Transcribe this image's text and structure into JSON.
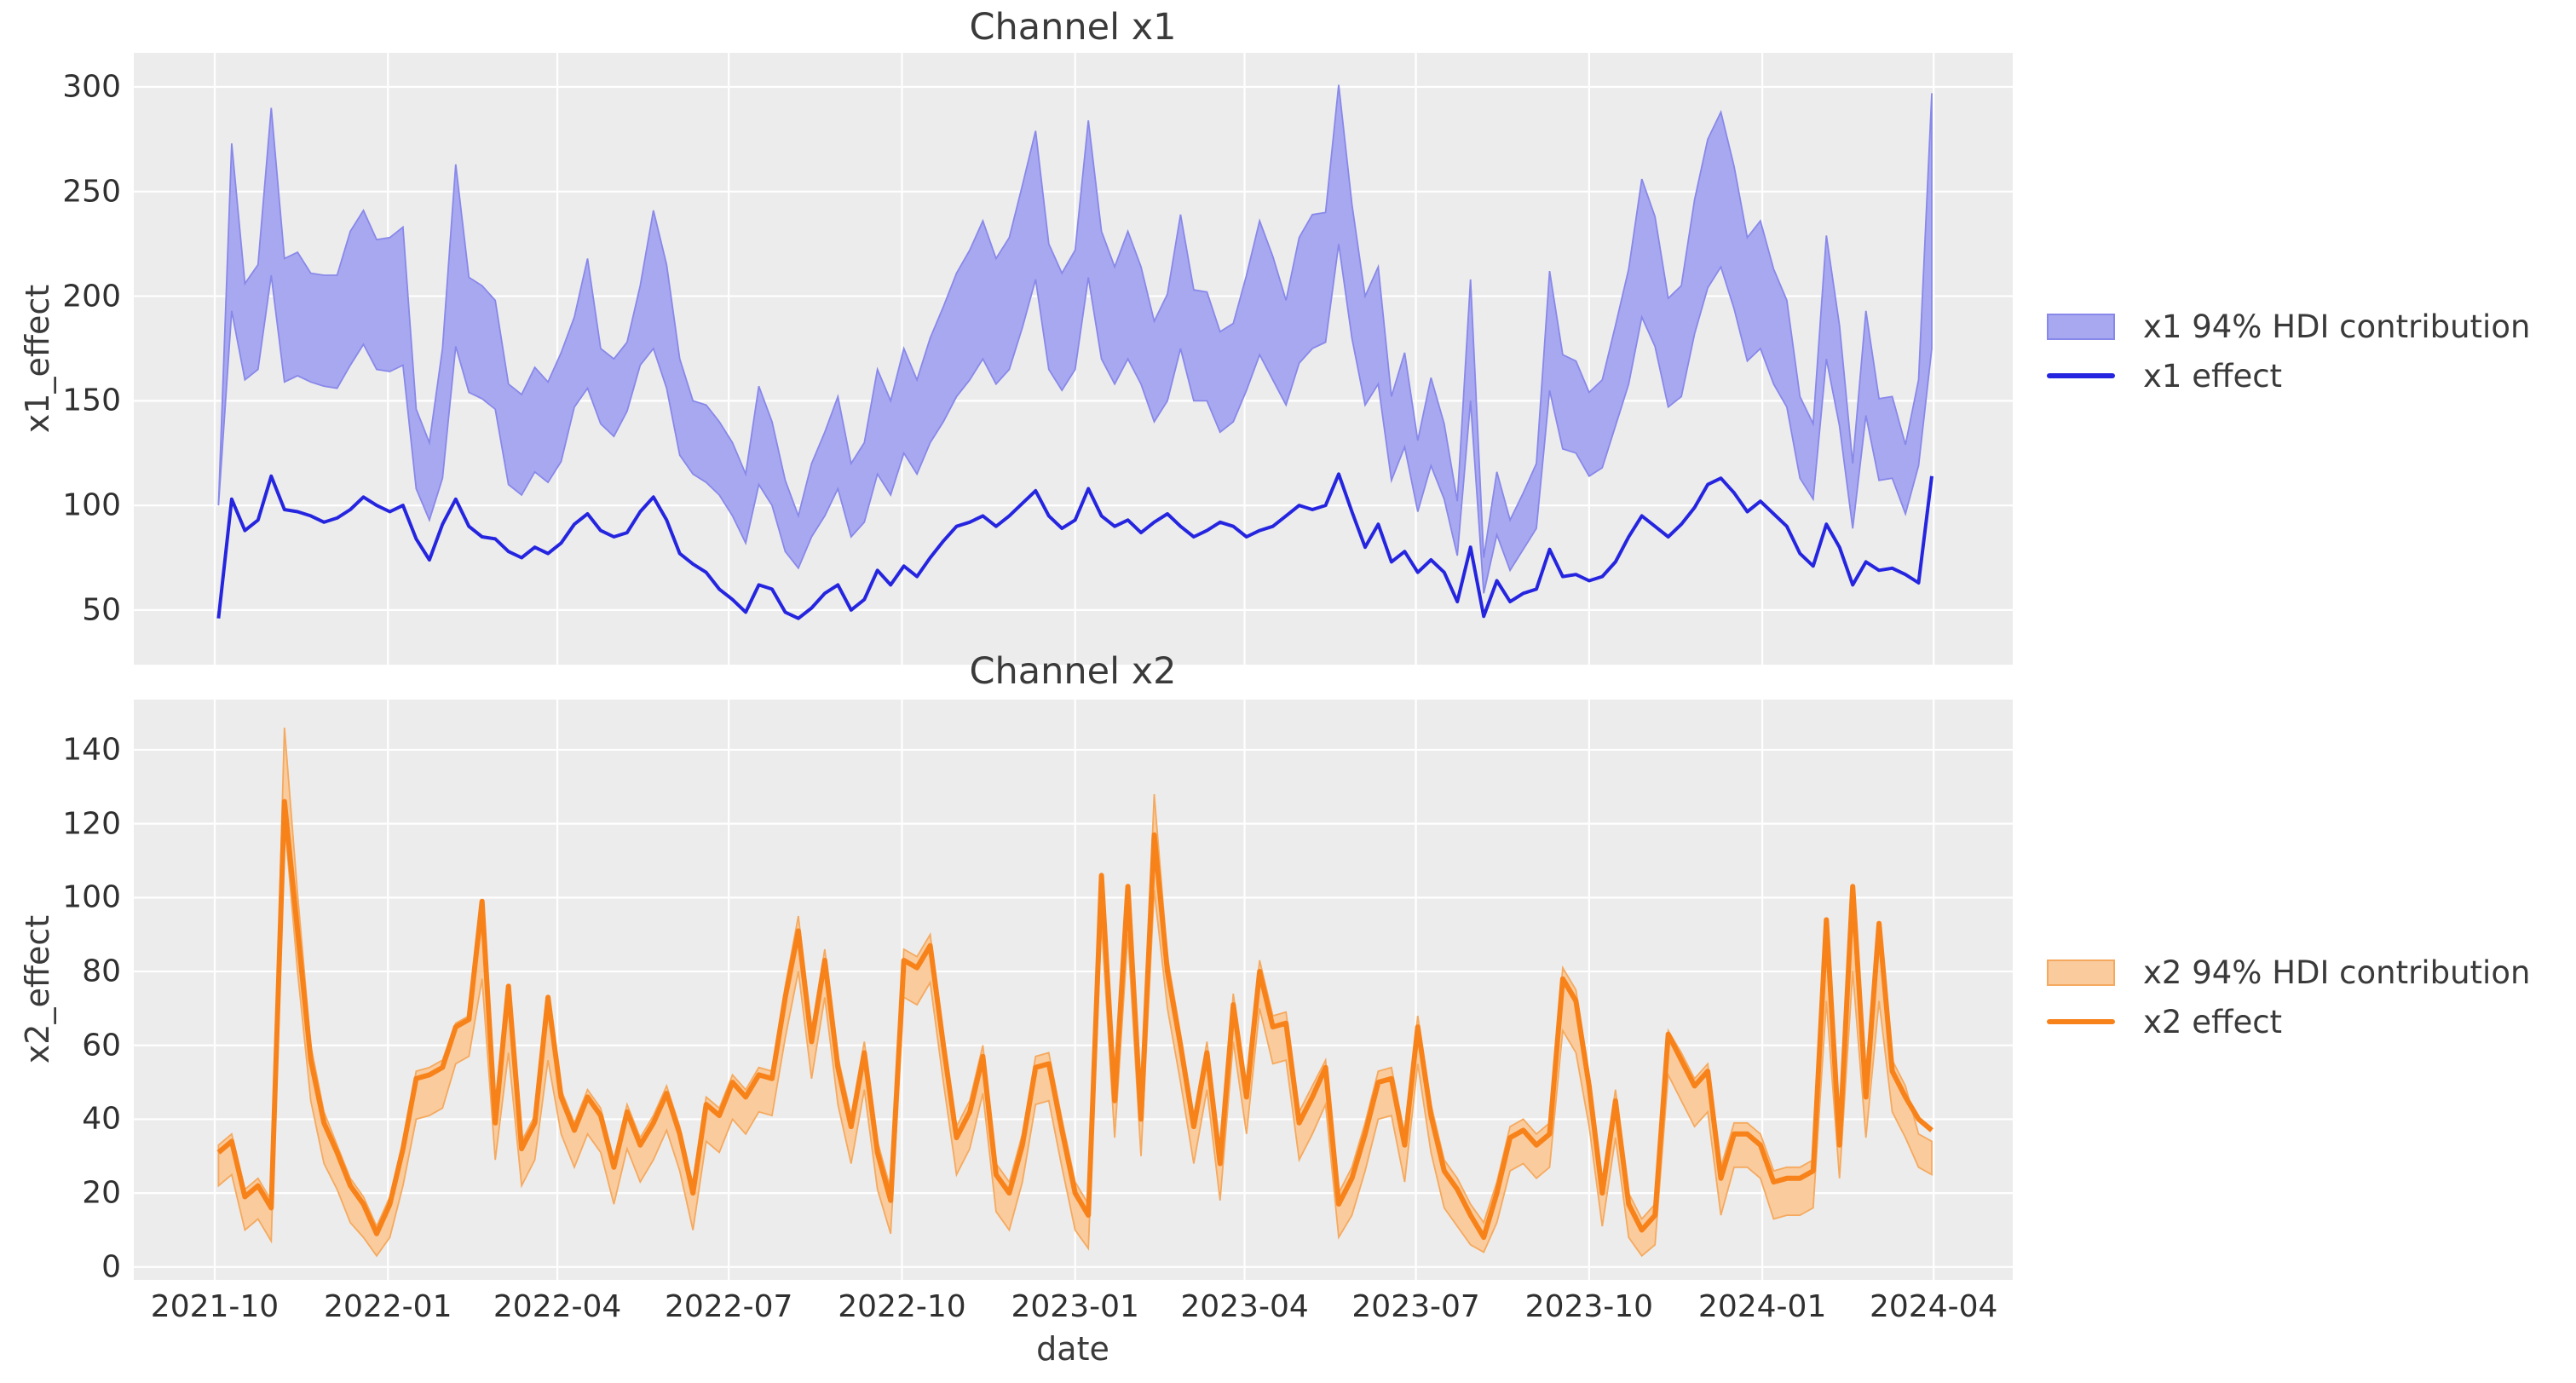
{
  "figure": {
    "axes_bg": "#ececec",
    "grid_color": "#ffffff",
    "text_color": "#3a3a3a"
  },
  "panels": [
    {
      "title": "Channel x1",
      "ylabel": "x1_effect",
      "yticks": [
        50,
        100,
        150,
        200,
        250,
        300
      ],
      "ylim": [
        23.9,
        316.3
      ],
      "band_fill": "#a8a8f0",
      "band_edge": "#8888ea",
      "line_color": "#2525e0",
      "line_width": 4,
      "legend": {
        "band_label": "x1 94% HDI contribution",
        "line_label": "x1 effect"
      }
    },
    {
      "title": "Channel x2",
      "ylabel": "x2_effect",
      "yticks": [
        0,
        20,
        40,
        60,
        80,
        100,
        120,
        140
      ],
      "ylim": [
        -3.5,
        153.6
      ],
      "band_fill": "#f9cb9d",
      "band_edge": "#f5a95e",
      "line_color": "#f8821a",
      "line_width": 6,
      "legend": {
        "band_label": "x2 94% HDI contribution",
        "line_label": "x2 effect"
      }
    }
  ],
  "x_axis": {
    "label": "date",
    "xlim": [
      "2021-08-19",
      "2024-05-13"
    ],
    "tick_dates": [
      "2021-10-01",
      "2022-01-01",
      "2022-04-01",
      "2022-07-01",
      "2022-10-01",
      "2023-01-01",
      "2023-04-01",
      "2023-07-01",
      "2023-10-01",
      "2024-01-01",
      "2024-04-01"
    ],
    "tick_labels": [
      "2021-10",
      "2022-01",
      "2022-04",
      "2022-07",
      "2022-10",
      "2023-01",
      "2023-04",
      "2023-07",
      "2023-10",
      "2024-01",
      "2024-04"
    ]
  },
  "chart_data": {
    "type": "line",
    "x_start_date": "2021-10-03",
    "x_step_days": 7,
    "n_points": 131,
    "series": [
      {
        "name": "x1 effect",
        "values": [
          46,
          103,
          88,
          93,
          114,
          98,
          97,
          95,
          92,
          94,
          98,
          104,
          100,
          97,
          100,
          84,
          74,
          91,
          103,
          90,
          85,
          84,
          78,
          75,
          80,
          77,
          82,
          91,
          96,
          88,
          85,
          87,
          97,
          104,
          93,
          77,
          72,
          68,
          60,
          55,
          49,
          62,
          60,
          49,
          46,
          51,
          58,
          62,
          50,
          55,
          69,
          62,
          71,
          66,
          75,
          83,
          90,
          92,
          95,
          90,
          95,
          101,
          107,
          95,
          89,
          93,
          108,
          95,
          90,
          93,
          87,
          92,
          96,
          90,
          85,
          88,
          92,
          90,
          85,
          88,
          90,
          95,
          100,
          98,
          100,
          115,
          97,
          80,
          91,
          73,
          78,
          68,
          74,
          68,
          54,
          80,
          47,
          64,
          54,
          58,
          60,
          79,
          66,
          67,
          64,
          66,
          73,
          85,
          95,
          90,
          85,
          91,
          99,
          110,
          113,
          106,
          97,
          102,
          96,
          90,
          77,
          71,
          91,
          80,
          62,
          73,
          69,
          70,
          67,
          63,
          114
        ]
      },
      {
        "name": "x1 94% HDI upper",
        "values": [
          100,
          273,
          206,
          215,
          290,
          218,
          221,
          211,
          210,
          210,
          231,
          241,
          227,
          228,
          233,
          146,
          130,
          175,
          263,
          209,
          205,
          198,
          158,
          153,
          166,
          159,
          173,
          190,
          218,
          175,
          170,
          178,
          205,
          241,
          215,
          170,
          150,
          148,
          140,
          130,
          115,
          157,
          140,
          112,
          95,
          120,
          135,
          152,
          120,
          130,
          165,
          150,
          175,
          160,
          180,
          195,
          211,
          222,
          236,
          218,
          228,
          253,
          279,
          225,
          211,
          222,
          284,
          231,
          214,
          231,
          214,
          188,
          201,
          239,
          203,
          202,
          183,
          187,
          210,
          236,
          219,
          198,
          228,
          239,
          240,
          301,
          244,
          200,
          214,
          152,
          173,
          131,
          161,
          139,
          102,
          208,
          75,
          116,
          93,
          106,
          120,
          212,
          172,
          169,
          154,
          160,
          186,
          213,
          256,
          238,
          199,
          205,
          246,
          275,
          288,
          262,
          228,
          236,
          213,
          198,
          152,
          139,
          229,
          186,
          120,
          193,
          151,
          152,
          129,
          160,
          297
        ]
      },
      {
        "name": "x1 94% HDI lower",
        "values": [
          100,
          193,
          160,
          165,
          210,
          159,
          162,
          159,
          157,
          156,
          167,
          177,
          165,
          164,
          167,
          108,
          93,
          113,
          176,
          154,
          151,
          146,
          110,
          105,
          116,
          111,
          121,
          147,
          156,
          139,
          133,
          145,
          167,
          175,
          156,
          124,
          115,
          111,
          105,
          95,
          82,
          110,
          100,
          78,
          70,
          85,
          95,
          108,
          85,
          92,
          115,
          105,
          125,
          115,
          130,
          140,
          152,
          160,
          170,
          158,
          165,
          185,
          208,
          165,
          155,
          165,
          209,
          170,
          158,
          170,
          158,
          140,
          150,
          175,
          150,
          150,
          135,
          140,
          155,
          172,
          160,
          148,
          168,
          175,
          178,
          225,
          180,
          148,
          158,
          112,
          128,
          97,
          119,
          103,
          76,
          150,
          58,
          86,
          69,
          79,
          89,
          155,
          127,
          125,
          114,
          118,
          138,
          158,
          190,
          176,
          147,
          152,
          182,
          204,
          214,
          194,
          169,
          175,
          158,
          147,
          113,
          103,
          170,
          138,
          89,
          143,
          112,
          113,
          96,
          119,
          175
        ]
      },
      {
        "name": "x2 effect",
        "values": [
          31,
          34,
          19,
          22,
          16,
          126,
          91,
          56,
          39,
          31,
          22,
          17,
          9,
          17,
          32,
          51,
          52,
          54,
          65,
          67,
          99,
          39,
          76,
          32,
          39,
          73,
          46,
          37,
          46,
          41,
          27,
          42,
          33,
          39,
          47,
          36,
          20,
          44,
          41,
          50,
          46,
          52,
          51,
          73,
          91,
          61,
          83,
          54,
          38,
          58,
          31,
          18,
          83,
          81,
          87,
          60,
          35,
          42,
          57,
          25,
          20,
          33,
          54,
          55,
          37,
          20,
          14,
          106,
          45,
          103,
          40,
          117,
          80,
          60,
          38,
          58,
          28,
          71,
          46,
          80,
          65,
          66,
          39,
          46,
          54,
          17,
          24,
          36,
          50,
          51,
          33,
          65,
          41,
          26,
          21,
          14,
          8,
          20,
          35,
          37,
          33,
          36,
          78,
          72,
          49,
          20,
          45,
          17,
          10,
          14,
          63,
          56,
          49,
          53,
          24,
          36,
          36,
          33,
          23,
          24,
          24,
          26,
          94,
          33,
          103,
          46,
          93,
          53,
          46,
          40,
          37
        ]
      },
      {
        "name": "x2 94% HDI upper",
        "values": [
          33,
          36,
          21,
          24,
          18,
          146,
          101,
          60,
          42,
          33,
          24,
          19,
          11,
          19,
          34,
          53,
          54,
          56,
          66,
          68,
          93,
          41,
          70,
          34,
          41,
          68,
          48,
          39,
          48,
          43,
          29,
          44,
          35,
          41,
          49,
          38,
          22,
          46,
          43,
          52,
          48,
          54,
          53,
          76,
          95,
          64,
          86,
          57,
          41,
          61,
          34,
          21,
          86,
          84,
          90,
          63,
          38,
          45,
          60,
          28,
          23,
          36,
          57,
          58,
          40,
          23,
          17,
          102,
          48,
          99,
          43,
          128,
          84,
          63,
          41,
          61,
          31,
          74,
          49,
          83,
          68,
          69,
          42,
          49,
          56,
          20,
          27,
          39,
          53,
          54,
          36,
          68,
          44,
          29,
          24,
          17,
          12,
          23,
          38,
          40,
          36,
          39,
          81,
          75,
          52,
          23,
          48,
          20,
          13,
          17,
          64,
          58,
          51,
          55,
          27,
          39,
          39,
          36,
          26,
          27,
          27,
          29,
          86,
          36,
          96,
          49,
          88,
          56,
          49,
          36,
          34
        ]
      },
      {
        "name": "x2 94% HDI lower",
        "values": [
          22,
          25,
          10,
          13,
          7,
          121,
          80,
          45,
          28,
          21,
          12,
          8,
          3,
          8,
          22,
          40,
          41,
          43,
          55,
          57,
          78,
          29,
          58,
          22,
          29,
          56,
          36,
          27,
          36,
          31,
          17,
          32,
          23,
          29,
          37,
          26,
          10,
          34,
          31,
          40,
          36,
          42,
          41,
          62,
          80,
          51,
          73,
          44,
          28,
          48,
          21,
          9,
          73,
          71,
          77,
          50,
          25,
          32,
          47,
          15,
          10,
          23,
          44,
          45,
          27,
          10,
          5,
          93,
          35,
          90,
          30,
          102,
          70,
          50,
          28,
          48,
          18,
          61,
          36,
          70,
          55,
          56,
          29,
          36,
          44,
          8,
          14,
          26,
          40,
          41,
          23,
          55,
          31,
          16,
          11,
          6,
          4,
          12,
          26,
          28,
          24,
          27,
          64,
          58,
          38,
          11,
          35,
          8,
          3,
          6,
          52,
          45,
          38,
          42,
          14,
          27,
          27,
          24,
          13,
          14,
          14,
          16,
          72,
          24,
          80,
          35,
          72,
          42,
          35,
          27,
          25
        ]
      }
    ]
  }
}
